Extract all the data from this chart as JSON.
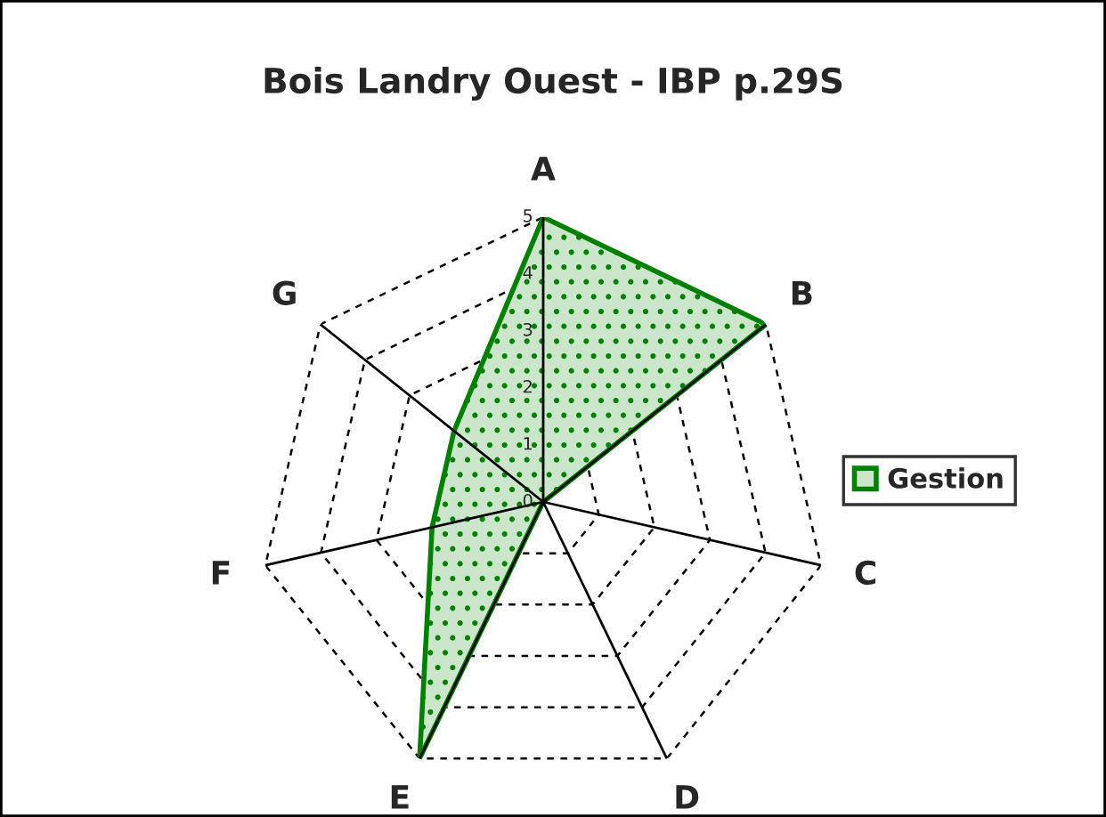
{
  "chart_data": {
    "type": "radar",
    "title": "Bois Landry Ouest - IBP p.29S",
    "categories": [
      "A",
      "B",
      "C",
      "D",
      "E",
      "F",
      "G"
    ],
    "series": [
      {
        "name": "Gestion",
        "color": "#008000",
        "values": [
          5,
          5,
          0,
          0,
          5,
          2,
          2
        ]
      }
    ],
    "ylim": [
      0,
      5
    ],
    "yticks": [
      0,
      1,
      2,
      3,
      4,
      5
    ],
    "grid": true,
    "legend": "right"
  }
}
